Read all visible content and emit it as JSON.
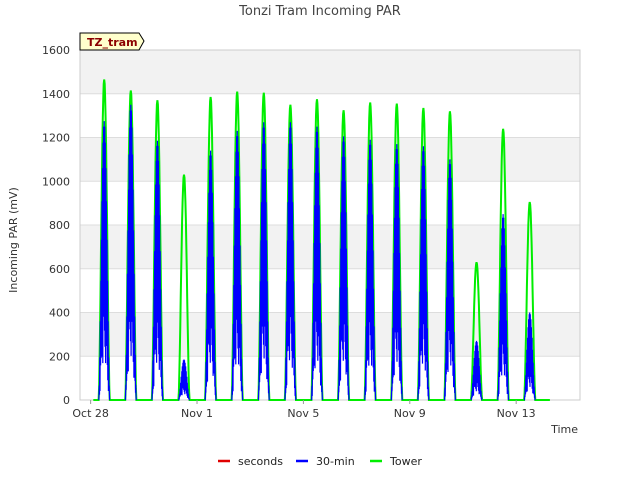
{
  "chart_data": {
    "type": "line",
    "title": "Tonzi Tram Incoming PAR",
    "xlabel": "Time",
    "ylabel": "Incoming PAR (mV)",
    "ylim": [
      0,
      1600
    ],
    "yticks": [
      0,
      200,
      400,
      600,
      800,
      1000,
      1200,
      1400,
      1600
    ],
    "x_unit": "day offset from Oct 28",
    "xlim": [
      -0.4,
      18.4
    ],
    "xticks": [
      {
        "label": "Oct 28",
        "x": 0
      },
      {
        "label": "Nov 1",
        "x": 4
      },
      {
        "label": "Nov 5",
        "x": 8
      },
      {
        "label": "Nov 9",
        "x": 12
      },
      {
        "label": "Nov 13",
        "x": 16
      }
    ],
    "grid": true,
    "legend_position": "bottom",
    "site_label": "TZ_tram",
    "series": [
      {
        "name": "seconds",
        "color": "#e00000",
        "daily_peaks": []
      },
      {
        "name": "30-min",
        "color": "#0000ff",
        "daily_peaks": [
          1275,
          1350,
          1185,
          185,
          1140,
          1230,
          1270,
          1270,
          1250,
          1205,
          1190,
          1170,
          1160,
          1100,
          270,
          850,
          400
        ]
      },
      {
        "name": "Tower",
        "color": "#00ee00",
        "daily_peaks": [
          1465,
          1415,
          1370,
          1030,
          1385,
          1410,
          1405,
          1350,
          1375,
          1325,
          1360,
          1355,
          1335,
          1320,
          630,
          1240,
          905
        ]
      }
    ]
  }
}
